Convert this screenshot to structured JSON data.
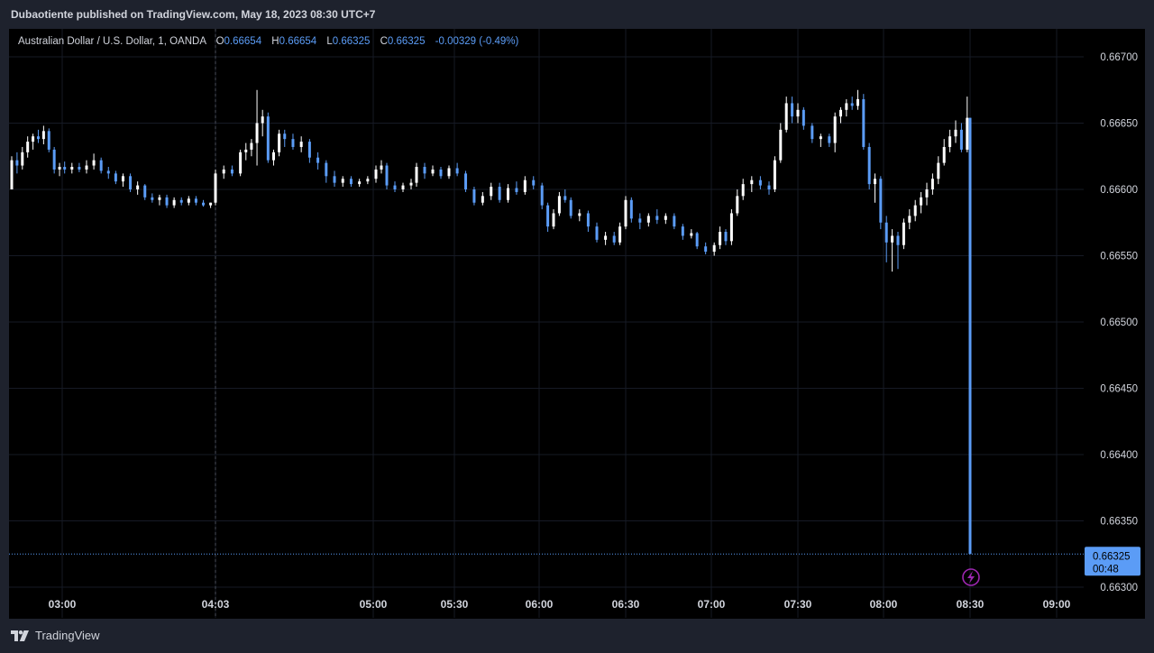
{
  "header": {
    "published": "Dubaotiente published on TradingView.com, May 18, 2023 08:30 UTC+7"
  },
  "legend": {
    "symbol": "Australian Dollar / U.S. Dollar, 1, OANDA",
    "open_label": "O",
    "open": "0.66654",
    "high_label": "H",
    "high": "0.66654",
    "low_label": "L",
    "low": "0.66325",
    "close_label": "C",
    "close": "0.66325",
    "change": "-0.00329 (-0.49%)"
  },
  "price_tag": {
    "price": "0.66325",
    "countdown": "00:48"
  },
  "footer": {
    "logo_icon": "tradingview-logo-icon",
    "brand": "TradingView"
  },
  "colors": {
    "up": "#ffffff",
    "down": "#5b9cf6",
    "background": "#000000",
    "grid": "#161a25",
    "accent": "#5b9cf6",
    "lightning": "#9c27b0"
  },
  "chart_data": {
    "type": "candlestick",
    "title": "Australian Dollar / U.S. Dollar, 1, OANDA",
    "y_ticks": [
      "0.66700",
      "0.66650",
      "0.66600",
      "0.66550",
      "0.66500",
      "0.66450",
      "0.66400",
      "0.66350",
      "0.66300"
    ],
    "x_ticks": [
      "03:00",
      "04:03",
      "05:00",
      "05:30",
      "06:00",
      "06:30",
      "07:00",
      "07:30",
      "08:00",
      "08:30",
      "09:00"
    ],
    "ylim": [
      0.663,
      0.6671
    ],
    "last_price": 0.66325,
    "series": [
      {
        "t": "02:41",
        "o": 0.666,
        "h": 0.66625,
        "l": 0.666,
        "c": 0.66622
      },
      {
        "t": "02:43",
        "o": 0.66622,
        "h": 0.66628,
        "l": 0.66612,
        "c": 0.66618
      },
      {
        "t": "02:45",
        "o": 0.66618,
        "h": 0.66632,
        "l": 0.66615,
        "c": 0.66628
      },
      {
        "t": "02:47",
        "o": 0.66628,
        "h": 0.6664,
        "l": 0.66624,
        "c": 0.66636
      },
      {
        "t": "02:49",
        "o": 0.66636,
        "h": 0.66642,
        "l": 0.6663,
        "c": 0.6664
      },
      {
        "t": "02:51",
        "o": 0.6664,
        "h": 0.66645,
        "l": 0.66635,
        "c": 0.66638
      },
      {
        "t": "02:53",
        "o": 0.66638,
        "h": 0.66648,
        "l": 0.66634,
        "c": 0.66644
      },
      {
        "t": "02:55",
        "o": 0.66644,
        "h": 0.66646,
        "l": 0.66628,
        "c": 0.6663
      },
      {
        "t": "02:57",
        "o": 0.6663,
        "h": 0.66632,
        "l": 0.66612,
        "c": 0.66615
      },
      {
        "t": "02:59",
        "o": 0.66615,
        "h": 0.6662,
        "l": 0.6661,
        "c": 0.66617
      },
      {
        "t": "03:01",
        "o": 0.66617,
        "h": 0.66621,
        "l": 0.66612,
        "c": 0.66615
      },
      {
        "t": "03:04",
        "o": 0.66615,
        "h": 0.6662,
        "l": 0.66612,
        "c": 0.66617
      },
      {
        "t": "03:07",
        "o": 0.66617,
        "h": 0.6662,
        "l": 0.66613,
        "c": 0.66615
      },
      {
        "t": "03:10",
        "o": 0.66615,
        "h": 0.66622,
        "l": 0.66612,
        "c": 0.66618
      },
      {
        "t": "03:13",
        "o": 0.66618,
        "h": 0.66627,
        "l": 0.66615,
        "c": 0.66622
      },
      {
        "t": "03:16",
        "o": 0.66622,
        "h": 0.66624,
        "l": 0.66612,
        "c": 0.66614
      },
      {
        "t": "03:19",
        "o": 0.66614,
        "h": 0.66617,
        "l": 0.66608,
        "c": 0.66612
      },
      {
        "t": "03:22",
        "o": 0.66612,
        "h": 0.66614,
        "l": 0.66604,
        "c": 0.66606
      },
      {
        "t": "03:25",
        "o": 0.66606,
        "h": 0.66612,
        "l": 0.66602,
        "c": 0.6661
      },
      {
        "t": "03:28",
        "o": 0.6661,
        "h": 0.66612,
        "l": 0.66598,
        "c": 0.666
      },
      {
        "t": "03:31",
        "o": 0.666,
        "h": 0.66606,
        "l": 0.66596,
        "c": 0.66603
      },
      {
        "t": "03:34",
        "o": 0.66603,
        "h": 0.66604,
        "l": 0.66592,
        "c": 0.66594
      },
      {
        "t": "03:37",
        "o": 0.66594,
        "h": 0.66597,
        "l": 0.6659,
        "c": 0.66592
      },
      {
        "t": "03:40",
        "o": 0.66592,
        "h": 0.66596,
        "l": 0.66588,
        "c": 0.66594
      },
      {
        "t": "03:43",
        "o": 0.66594,
        "h": 0.66596,
        "l": 0.66586,
        "c": 0.66588
      },
      {
        "t": "03:46",
        "o": 0.66588,
        "h": 0.66594,
        "l": 0.66586,
        "c": 0.66592
      },
      {
        "t": "03:49",
        "o": 0.66592,
        "h": 0.66594,
        "l": 0.66588,
        "c": 0.6659
      },
      {
        "t": "03:52",
        "o": 0.6659,
        "h": 0.66595,
        "l": 0.66588,
        "c": 0.66593
      },
      {
        "t": "03:55",
        "o": 0.66593,
        "h": 0.66595,
        "l": 0.66588,
        "c": 0.6659
      },
      {
        "t": "03:58",
        "o": 0.6659,
        "h": 0.66592,
        "l": 0.66587,
        "c": 0.66588
      },
      {
        "t": "04:01",
        "o": 0.66588,
        "h": 0.6659,
        "l": 0.66586,
        "c": 0.6659
      },
      {
        "t": "04:03",
        "o": 0.6659,
        "h": 0.66615,
        "l": 0.66588,
        "c": 0.66612
      },
      {
        "t": "04:06",
        "o": 0.66612,
        "h": 0.66618,
        "l": 0.66608,
        "c": 0.66615
      },
      {
        "t": "04:09",
        "o": 0.66615,
        "h": 0.66618,
        "l": 0.6661,
        "c": 0.66612
      },
      {
        "t": "04:12",
        "o": 0.66612,
        "h": 0.6663,
        "l": 0.6661,
        "c": 0.66628
      },
      {
        "t": "04:14",
        "o": 0.66628,
        "h": 0.66635,
        "l": 0.66622,
        "c": 0.6663
      },
      {
        "t": "04:16",
        "o": 0.6663,
        "h": 0.66638,
        "l": 0.66625,
        "c": 0.66635
      },
      {
        "t": "04:18",
        "o": 0.66635,
        "h": 0.66675,
        "l": 0.66618,
        "c": 0.6665
      },
      {
        "t": "04:20",
        "o": 0.6665,
        "h": 0.6666,
        "l": 0.6664,
        "c": 0.66655
      },
      {
        "t": "04:22",
        "o": 0.66655,
        "h": 0.66658,
        "l": 0.6662,
        "c": 0.66622
      },
      {
        "t": "04:24",
        "o": 0.66622,
        "h": 0.6663,
        "l": 0.66618,
        "c": 0.66628
      },
      {
        "t": "04:26",
        "o": 0.66628,
        "h": 0.66645,
        "l": 0.66625,
        "c": 0.66642
      },
      {
        "t": "04:28",
        "o": 0.66642,
        "h": 0.66645,
        "l": 0.66632,
        "c": 0.66638
      },
      {
        "t": "04:31",
        "o": 0.66638,
        "h": 0.66642,
        "l": 0.6663,
        "c": 0.66632
      },
      {
        "t": "04:34",
        "o": 0.66632,
        "h": 0.6664,
        "l": 0.66628,
        "c": 0.66636
      },
      {
        "t": "04:37",
        "o": 0.66636,
        "h": 0.66638,
        "l": 0.6662,
        "c": 0.66624
      },
      {
        "t": "04:40",
        "o": 0.66624,
        "h": 0.66628,
        "l": 0.66615,
        "c": 0.6662
      },
      {
        "t": "04:43",
        "o": 0.6662,
        "h": 0.66622,
        "l": 0.66605,
        "c": 0.6661
      },
      {
        "t": "04:46",
        "o": 0.6661,
        "h": 0.66614,
        "l": 0.66602,
        "c": 0.66605
      },
      {
        "t": "04:49",
        "o": 0.66605,
        "h": 0.6661,
        "l": 0.66602,
        "c": 0.66608
      },
      {
        "t": "04:52",
        "o": 0.66608,
        "h": 0.6661,
        "l": 0.66602,
        "c": 0.66604
      },
      {
        "t": "04:55",
        "o": 0.66604,
        "h": 0.66608,
        "l": 0.66602,
        "c": 0.66606
      },
      {
        "t": "04:58",
        "o": 0.66606,
        "h": 0.6661,
        "l": 0.66604,
        "c": 0.66608
      },
      {
        "t": "05:01",
        "o": 0.66608,
        "h": 0.66618,
        "l": 0.66605,
        "c": 0.66615
      },
      {
        "t": "05:03",
        "o": 0.66615,
        "h": 0.66622,
        "l": 0.66612,
        "c": 0.66618
      },
      {
        "t": "05:05",
        "o": 0.66618,
        "h": 0.6662,
        "l": 0.666,
        "c": 0.66603
      },
      {
        "t": "05:08",
        "o": 0.66603,
        "h": 0.66606,
        "l": 0.66598,
        "c": 0.666
      },
      {
        "t": "05:11",
        "o": 0.666,
        "h": 0.66605,
        "l": 0.66598,
        "c": 0.66603
      },
      {
        "t": "05:14",
        "o": 0.66603,
        "h": 0.66608,
        "l": 0.666,
        "c": 0.66605
      },
      {
        "t": "05:16",
        "o": 0.66605,
        "h": 0.6662,
        "l": 0.66602,
        "c": 0.66617
      },
      {
        "t": "05:19",
        "o": 0.66617,
        "h": 0.6662,
        "l": 0.66608,
        "c": 0.66612
      },
      {
        "t": "05:22",
        "o": 0.66612,
        "h": 0.66618,
        "l": 0.6661,
        "c": 0.66615
      },
      {
        "t": "05:25",
        "o": 0.66615,
        "h": 0.66617,
        "l": 0.66608,
        "c": 0.6661
      },
      {
        "t": "05:28",
        "o": 0.6661,
        "h": 0.66618,
        "l": 0.66608,
        "c": 0.66616
      },
      {
        "t": "05:31",
        "o": 0.66616,
        "h": 0.6662,
        "l": 0.6661,
        "c": 0.66612
      },
      {
        "t": "05:34",
        "o": 0.66612,
        "h": 0.66614,
        "l": 0.66598,
        "c": 0.666
      },
      {
        "t": "05:37",
        "o": 0.666,
        "h": 0.66602,
        "l": 0.66588,
        "c": 0.6659
      },
      {
        "t": "05:40",
        "o": 0.6659,
        "h": 0.66598,
        "l": 0.66588,
        "c": 0.66595
      },
      {
        "t": "05:43",
        "o": 0.66595,
        "h": 0.66605,
        "l": 0.66592,
        "c": 0.66602
      },
      {
        "t": "05:46",
        "o": 0.66602,
        "h": 0.66605,
        "l": 0.6659,
        "c": 0.66592
      },
      {
        "t": "05:49",
        "o": 0.66592,
        "h": 0.66604,
        "l": 0.6659,
        "c": 0.66601
      },
      {
        "t": "05:52",
        "o": 0.66601,
        "h": 0.66606,
        "l": 0.66596,
        "c": 0.66598
      },
      {
        "t": "05:55",
        "o": 0.66598,
        "h": 0.6661,
        "l": 0.66596,
        "c": 0.66607
      },
      {
        "t": "05:58",
        "o": 0.66607,
        "h": 0.6661,
        "l": 0.666,
        "c": 0.66603
      },
      {
        "t": "06:01",
        "o": 0.66603,
        "h": 0.66605,
        "l": 0.66585,
        "c": 0.66588
      },
      {
        "t": "06:03",
        "o": 0.66588,
        "h": 0.6659,
        "l": 0.66568,
        "c": 0.66572
      },
      {
        "t": "06:05",
        "o": 0.66572,
        "h": 0.66585,
        "l": 0.6657,
        "c": 0.66582
      },
      {
        "t": "06:07",
        "o": 0.66582,
        "h": 0.66598,
        "l": 0.6658,
        "c": 0.66595
      },
      {
        "t": "06:09",
        "o": 0.66595,
        "h": 0.666,
        "l": 0.6659,
        "c": 0.66592
      },
      {
        "t": "06:11",
        "o": 0.66592,
        "h": 0.66594,
        "l": 0.66578,
        "c": 0.6658
      },
      {
        "t": "06:14",
        "o": 0.6658,
        "h": 0.66585,
        "l": 0.66576,
        "c": 0.66582
      },
      {
        "t": "06:17",
        "o": 0.66582,
        "h": 0.66584,
        "l": 0.66568,
        "c": 0.66572
      },
      {
        "t": "06:20",
        "o": 0.66572,
        "h": 0.66575,
        "l": 0.6656,
        "c": 0.66562
      },
      {
        "t": "06:23",
        "o": 0.66562,
        "h": 0.66568,
        "l": 0.66558,
        "c": 0.66565
      },
      {
        "t": "06:26",
        "o": 0.66565,
        "h": 0.66568,
        "l": 0.66558,
        "c": 0.6656
      },
      {
        "t": "06:28",
        "o": 0.6656,
        "h": 0.66575,
        "l": 0.66558,
        "c": 0.66572
      },
      {
        "t": "06:30",
        "o": 0.66572,
        "h": 0.66595,
        "l": 0.6657,
        "c": 0.66592
      },
      {
        "t": "06:32",
        "o": 0.66592,
        "h": 0.66594,
        "l": 0.66575,
        "c": 0.66578
      },
      {
        "t": "06:35",
        "o": 0.66578,
        "h": 0.66582,
        "l": 0.6657,
        "c": 0.66575
      },
      {
        "t": "06:38",
        "o": 0.66575,
        "h": 0.66582,
        "l": 0.66572,
        "c": 0.6658
      },
      {
        "t": "06:41",
        "o": 0.6658,
        "h": 0.66585,
        "l": 0.66574,
        "c": 0.66577
      },
      {
        "t": "06:44",
        "o": 0.66577,
        "h": 0.66582,
        "l": 0.66574,
        "c": 0.6658
      },
      {
        "t": "06:47",
        "o": 0.6658,
        "h": 0.66582,
        "l": 0.6657,
        "c": 0.66572
      },
      {
        "t": "06:50",
        "o": 0.66572,
        "h": 0.66574,
        "l": 0.66562,
        "c": 0.66565
      },
      {
        "t": "06:53",
        "o": 0.66565,
        "h": 0.6657,
        "l": 0.66563,
        "c": 0.66567
      },
      {
        "t": "06:55",
        "o": 0.66567,
        "h": 0.66568,
        "l": 0.66555,
        "c": 0.66557
      },
      {
        "t": "06:58",
        "o": 0.66557,
        "h": 0.6656,
        "l": 0.66551,
        "c": 0.66553
      },
      {
        "t": "07:01",
        "o": 0.66553,
        "h": 0.6656,
        "l": 0.6655,
        "c": 0.66558
      },
      {
        "t": "07:03",
        "o": 0.66558,
        "h": 0.66572,
        "l": 0.66555,
        "c": 0.66568
      },
      {
        "t": "07:05",
        "o": 0.66568,
        "h": 0.6657,
        "l": 0.66558,
        "c": 0.66561
      },
      {
        "t": "07:07",
        "o": 0.66561,
        "h": 0.66585,
        "l": 0.66558,
        "c": 0.66582
      },
      {
        "t": "07:09",
        "o": 0.66582,
        "h": 0.666,
        "l": 0.6658,
        "c": 0.66595
      },
      {
        "t": "07:11",
        "o": 0.66595,
        "h": 0.66608,
        "l": 0.66592,
        "c": 0.66604
      },
      {
        "t": "07:14",
        "o": 0.66604,
        "h": 0.6661,
        "l": 0.66598,
        "c": 0.66607
      },
      {
        "t": "07:17",
        "o": 0.66607,
        "h": 0.6661,
        "l": 0.666,
        "c": 0.66603
      },
      {
        "t": "07:20",
        "o": 0.66603,
        "h": 0.66606,
        "l": 0.66596,
        "c": 0.666
      },
      {
        "t": "07:22",
        "o": 0.666,
        "h": 0.66625,
        "l": 0.66598,
        "c": 0.66622
      },
      {
        "t": "07:24",
        "o": 0.66622,
        "h": 0.6665,
        "l": 0.6662,
        "c": 0.66645
      },
      {
        "t": "07:26",
        "o": 0.66645,
        "h": 0.6667,
        "l": 0.66643,
        "c": 0.66665
      },
      {
        "t": "07:28",
        "o": 0.66665,
        "h": 0.6667,
        "l": 0.6665,
        "c": 0.66655
      },
      {
        "t": "07:30",
        "o": 0.66655,
        "h": 0.66665,
        "l": 0.6665,
        "c": 0.6666
      },
      {
        "t": "07:32",
        "o": 0.6666,
        "h": 0.66662,
        "l": 0.66645,
        "c": 0.66648
      },
      {
        "t": "07:35",
        "o": 0.66648,
        "h": 0.6665,
        "l": 0.66635,
        "c": 0.66638
      },
      {
        "t": "07:38",
        "o": 0.66638,
        "h": 0.66642,
        "l": 0.66632,
        "c": 0.6664
      },
      {
        "t": "07:41",
        "o": 0.6664,
        "h": 0.66642,
        "l": 0.66632,
        "c": 0.66635
      },
      {
        "t": "07:43",
        "o": 0.66635,
        "h": 0.66658,
        "l": 0.66628,
        "c": 0.66655
      },
      {
        "t": "07:45",
        "o": 0.66655,
        "h": 0.66662,
        "l": 0.6665,
        "c": 0.6666
      },
      {
        "t": "07:47",
        "o": 0.6666,
        "h": 0.66668,
        "l": 0.66655,
        "c": 0.66665
      },
      {
        "t": "07:49",
        "o": 0.66665,
        "h": 0.6667,
        "l": 0.6666,
        "c": 0.66663
      },
      {
        "t": "07:51",
        "o": 0.66663,
        "h": 0.66675,
        "l": 0.6666,
        "c": 0.66668
      },
      {
        "t": "07:53",
        "o": 0.66668,
        "h": 0.66672,
        "l": 0.6663,
        "c": 0.66632
      },
      {
        "t": "07:55",
        "o": 0.66632,
        "h": 0.66635,
        "l": 0.666,
        "c": 0.66604
      },
      {
        "t": "07:57",
        "o": 0.66604,
        "h": 0.66612,
        "l": 0.6659,
        "c": 0.66608
      },
      {
        "t": "07:59",
        "o": 0.66608,
        "h": 0.6661,
        "l": 0.6657,
        "c": 0.66575
      },
      {
        "t": "08:01",
        "o": 0.66575,
        "h": 0.6658,
        "l": 0.66545,
        "c": 0.6656
      },
      {
        "t": "08:03",
        "o": 0.6656,
        "h": 0.6657,
        "l": 0.66538,
        "c": 0.66565
      },
      {
        "t": "08:05",
        "o": 0.66565,
        "h": 0.66568,
        "l": 0.6654,
        "c": 0.66558
      },
      {
        "t": "08:07",
        "o": 0.66558,
        "h": 0.66578,
        "l": 0.66555,
        "c": 0.66575
      },
      {
        "t": "08:09",
        "o": 0.66575,
        "h": 0.66585,
        "l": 0.6657,
        "c": 0.6658
      },
      {
        "t": "08:11",
        "o": 0.6658,
        "h": 0.66592,
        "l": 0.66576,
        "c": 0.66588
      },
      {
        "t": "08:13",
        "o": 0.66588,
        "h": 0.66598,
        "l": 0.66582,
        "c": 0.66594
      },
      {
        "t": "08:15",
        "o": 0.66594,
        "h": 0.66605,
        "l": 0.66588,
        "c": 0.666
      },
      {
        "t": "08:17",
        "o": 0.666,
        "h": 0.66612,
        "l": 0.66596,
        "c": 0.66608
      },
      {
        "t": "08:19",
        "o": 0.66608,
        "h": 0.66625,
        "l": 0.66604,
        "c": 0.6662
      },
      {
        "t": "08:21",
        "o": 0.6662,
        "h": 0.66638,
        "l": 0.66618,
        "c": 0.66632
      },
      {
        "t": "08:23",
        "o": 0.66632,
        "h": 0.66645,
        "l": 0.66628,
        "c": 0.6664
      },
      {
        "t": "08:25",
        "o": 0.6664,
        "h": 0.66652,
        "l": 0.66635,
        "c": 0.66645
      },
      {
        "t": "08:27",
        "o": 0.66645,
        "h": 0.6665,
        "l": 0.66628,
        "c": 0.6663
      },
      {
        "t": "08:29",
        "o": 0.6663,
        "h": 0.6667,
        "l": 0.66628,
        "c": 0.66654
      },
      {
        "t": "08:30",
        "o": 0.66654,
        "h": 0.66654,
        "l": 0.66325,
        "c": 0.66325
      }
    ]
  }
}
